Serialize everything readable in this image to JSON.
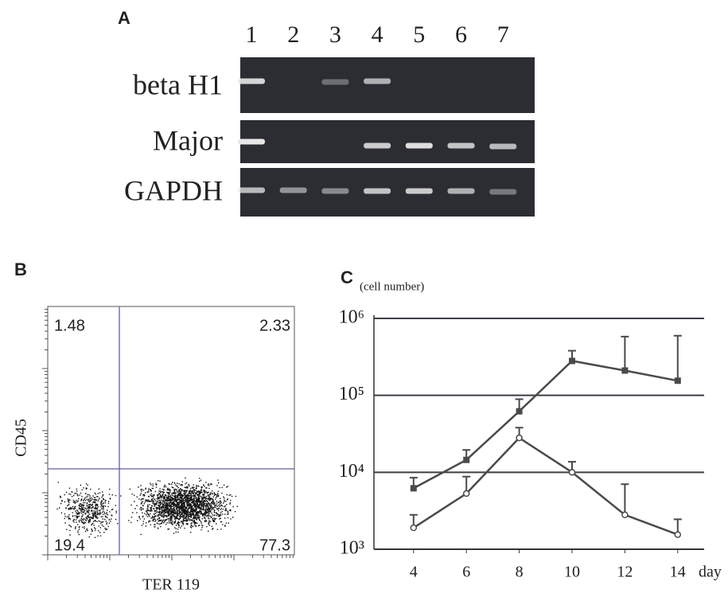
{
  "panel_a": {
    "label": "A",
    "lanes": [
      "1",
      "2",
      "3",
      "4",
      "5",
      "6",
      "7"
    ],
    "rows": [
      "beta H1",
      "Major",
      "GAPDH"
    ]
  },
  "panel_b": {
    "label": "B",
    "quadrants": {
      "upper_left": 1.48,
      "upper_right": 2.33,
      "lower_left": 19.4,
      "lower_right": 77.3
    },
    "x_label": "TER 119",
    "y_label": "CD45"
  },
  "chart_data": {
    "type": "line",
    "panel_label": "C",
    "y_label": "(cell number)",
    "x_label": "day",
    "x": [
      4,
      6,
      8,
      10,
      12,
      14
    ],
    "series": [
      {
        "color": "#4a4a4a",
        "marker": "square",
        "values": [
          6200,
          14500,
          62000,
          280000,
          210000,
          155000
        ],
        "errors": [
          2300,
          5000,
          27000,
          100000,
          370000,
          440000
        ]
      },
      {
        "color": "#4a4a4a",
        "marker": "circle",
        "values": [
          1900,
          5300,
          28000,
          10000,
          2800,
          1550
        ],
        "errors": [
          900,
          3500,
          10000,
          3700,
          4200,
          900
        ]
      }
    ],
    "xlim": [
      2.5,
      15
    ],
    "xticks": [
      4,
      6,
      8,
      10,
      12,
      14
    ],
    "ylim": [
      1000,
      1000000
    ],
    "yticks": [
      {
        "value": 1000,
        "label": "10³"
      },
      {
        "value": 10000,
        "label": "10⁴"
      },
      {
        "value": 100000,
        "label": "10⁵"
      },
      {
        "value": 1000000,
        "label": "10⁶"
      }
    ],
    "log_y": true,
    "grid": true
  }
}
